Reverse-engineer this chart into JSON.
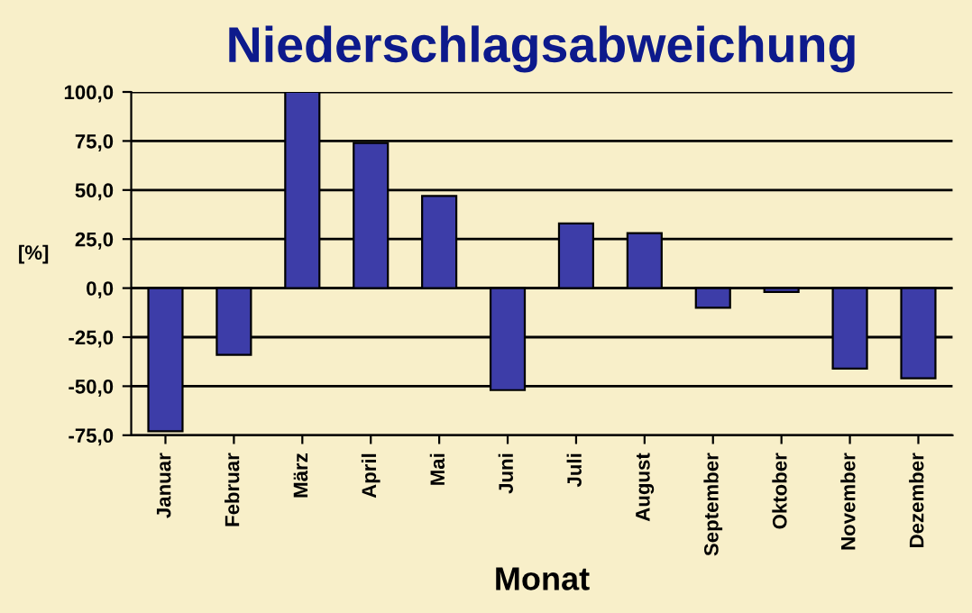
{
  "chart_data": {
    "type": "bar",
    "title": "Niederschlagsabweichung",
    "xlabel": "Monat",
    "ylabel": "[%]",
    "categories": [
      "Januar",
      "Februar",
      "März",
      "April",
      "Mai",
      "Juni",
      "Juli",
      "August",
      "September",
      "Oktober",
      "November",
      "Dezember"
    ],
    "values": [
      -73,
      -34,
      100,
      74,
      47,
      -52,
      33,
      28,
      -10,
      -2,
      -41,
      -46
    ],
    "color": "#3d3da8",
    "ylim": [
      -75,
      100
    ],
    "yticks": [
      {
        "value": -75,
        "label": "-75,0"
      },
      {
        "value": -50,
        "label": "-50,0"
      },
      {
        "value": -25,
        "label": "-25,0"
      },
      {
        "value": 0,
        "label": "0,0"
      },
      {
        "value": 25,
        "label": "25,0"
      },
      {
        "value": 50,
        "label": "50,0"
      },
      {
        "value": 75,
        "label": "75,0"
      },
      {
        "value": 100,
        "label": "100,0"
      }
    ],
    "grid": "y",
    "legend": false
  }
}
